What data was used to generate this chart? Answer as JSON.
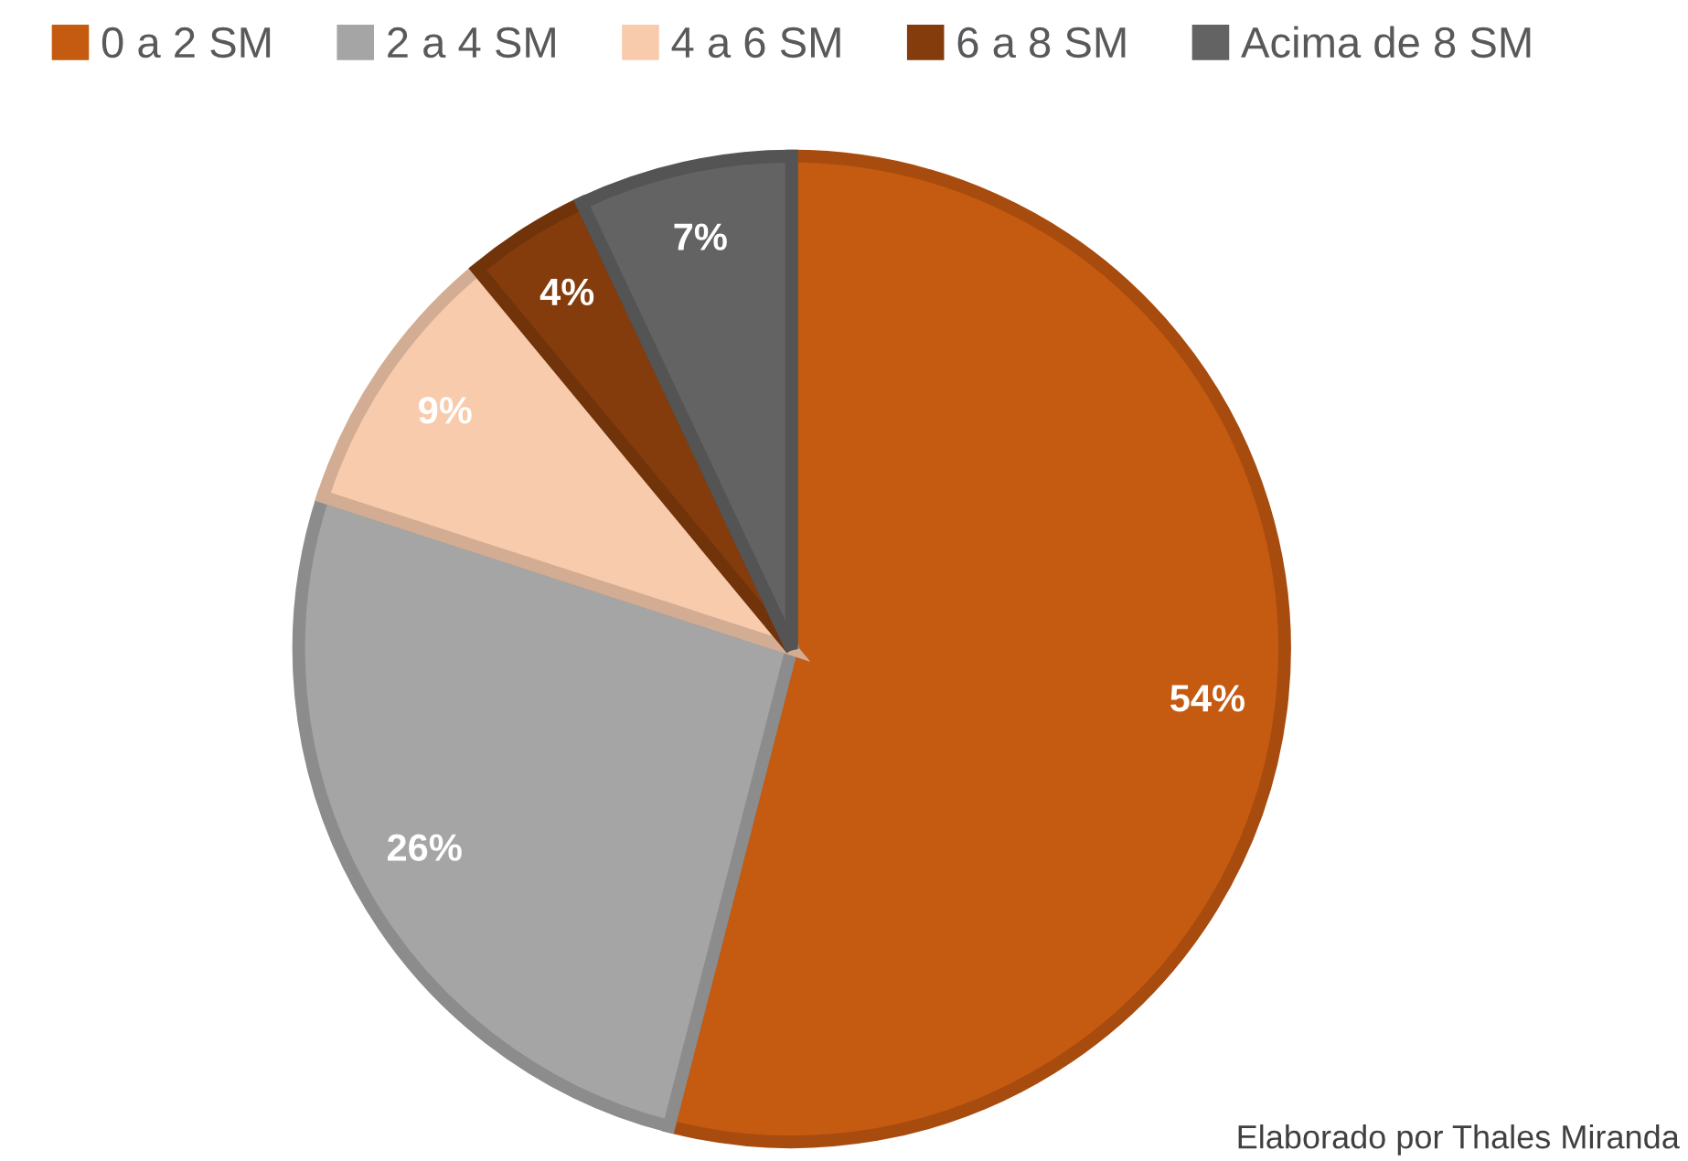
{
  "chart_data": {
    "type": "pie",
    "categories": [
      "0 a 2 SM",
      "2 a 4 SM",
      "4 a 6 SM",
      "6 a 8 SM",
      "Acima de 8 SM"
    ],
    "values": [
      54,
      26,
      9,
      4,
      7
    ],
    "colors": [
      "#c55a11",
      "#a5a5a5",
      "#f8cbad",
      "#843c0c",
      "#636363"
    ],
    "value_labels": [
      "54%",
      "26%",
      "9%",
      "4%",
      "7%"
    ],
    "legend": "top",
    "annotations": [
      "Elaborado por Thales Miranda"
    ]
  }
}
